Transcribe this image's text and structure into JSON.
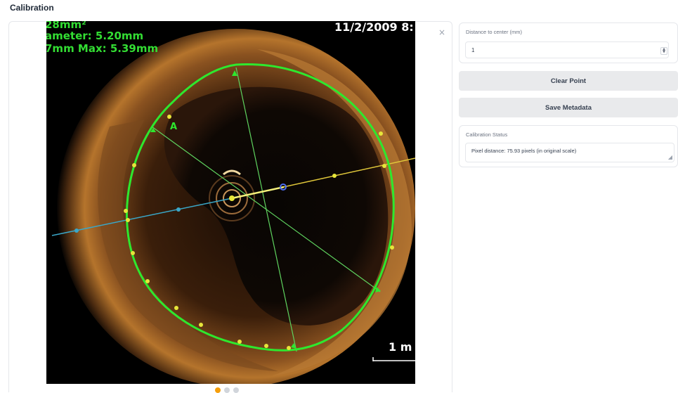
{
  "section": {
    "title": "Calibration"
  },
  "image_panel": {
    "close_glyph": "×",
    "overlay": {
      "line1": "28mm²",
      "line2": "ameter: 5.20mm",
      "line3": "7mm  Max: 5.39mm",
      "timestamp": "11/2/2009 8:",
      "scale_label": "1 m",
      "marker_label": "A"
    },
    "icons": {
      "close": "close-icon",
      "pagination": "pagination-dots"
    },
    "pagination": {
      "active_color": "#f59e0b",
      "inactive_color": "#d1d5db"
    }
  },
  "distance_field": {
    "label": "Distance to center (mm)",
    "value": "1",
    "stepper_up": "▲",
    "stepper_down": "▼"
  },
  "buttons": {
    "clear_point": "Clear Point",
    "save_metadata": "Save Metadata"
  },
  "status": {
    "label": "Calibration Status",
    "text": "Pixel distance: 75.93 pixels (in original scale)",
    "resize_glyph": "◢"
  },
  "colors": {
    "contour": "#2ee82e",
    "measure_line": "#5fd35f",
    "marker": "#e6e63a",
    "cyan_line": "#3aa7c8",
    "yellow_line": "#e0c73a",
    "overlay_text": "#33dd33"
  }
}
